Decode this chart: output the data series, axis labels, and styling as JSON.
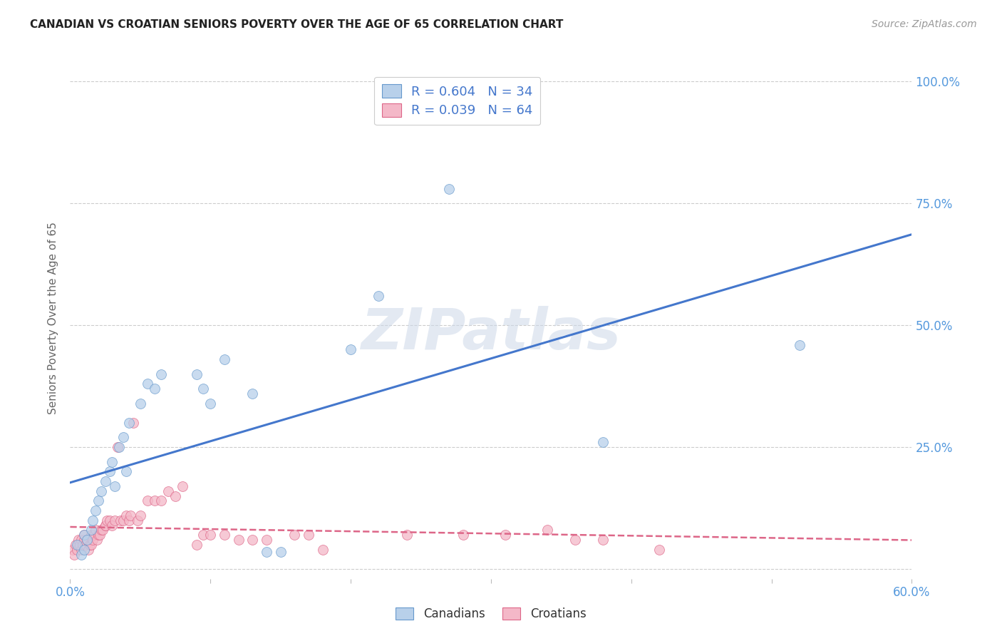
{
  "title": "CANADIAN VS CROATIAN SENIORS POVERTY OVER THE AGE OF 65 CORRELATION CHART",
  "source": "Source: ZipAtlas.com",
  "ylabel": "Seniors Poverty Over the Age of 65",
  "xlim": [
    0.0,
    0.6
  ],
  "ylim": [
    -0.02,
    1.05
  ],
  "yticks": [
    0.0,
    0.25,
    0.5,
    0.75,
    1.0
  ],
  "ytick_labels": [
    "",
    "25.0%",
    "50.0%",
    "75.0%",
    "100.0%"
  ],
  "xtick_vals": [
    0.0,
    0.1,
    0.2,
    0.3,
    0.4,
    0.5,
    0.6
  ],
  "xtick_labels": [
    "0.0%",
    "",
    "",
    "",
    "",
    "",
    "60.0%"
  ],
  "canadian_R": "0.604",
  "canadian_N": "34",
  "croatian_R": "0.039",
  "croatian_N": "64",
  "canadian_color": "#b8d0ea",
  "croatian_color": "#f4b8c8",
  "canadian_edge_color": "#6699cc",
  "croatian_edge_color": "#dd6688",
  "trendline_canadian_color": "#4477cc",
  "trendline_croatian_color": "#dd6688",
  "background_color": "#ffffff",
  "watermark": "ZIPatlas",
  "canadians_x": [
    0.005,
    0.008,
    0.01,
    0.01,
    0.012,
    0.015,
    0.016,
    0.018,
    0.02,
    0.022,
    0.025,
    0.028,
    0.03,
    0.032,
    0.035,
    0.038,
    0.04,
    0.042,
    0.05,
    0.055,
    0.06,
    0.065,
    0.09,
    0.095,
    0.1,
    0.11,
    0.13,
    0.14,
    0.15,
    0.2,
    0.22,
    0.27,
    0.38,
    0.52
  ],
  "canadians_y": [
    0.05,
    0.03,
    0.04,
    0.07,
    0.06,
    0.08,
    0.1,
    0.12,
    0.14,
    0.16,
    0.18,
    0.2,
    0.22,
    0.17,
    0.25,
    0.27,
    0.2,
    0.3,
    0.34,
    0.38,
    0.37,
    0.4,
    0.4,
    0.37,
    0.34,
    0.43,
    0.36,
    0.035,
    0.035,
    0.45,
    0.56,
    0.78,
    0.26,
    0.46
  ],
  "croatians_x": [
    0.002,
    0.003,
    0.004,
    0.005,
    0.006,
    0.006,
    0.007,
    0.008,
    0.008,
    0.009,
    0.01,
    0.01,
    0.011,
    0.012,
    0.013,
    0.014,
    0.015,
    0.015,
    0.016,
    0.017,
    0.018,
    0.019,
    0.02,
    0.021,
    0.022,
    0.023,
    0.025,
    0.025,
    0.026,
    0.028,
    0.03,
    0.032,
    0.034,
    0.036,
    0.038,
    0.04,
    0.042,
    0.043,
    0.045,
    0.048,
    0.05,
    0.055,
    0.06,
    0.065,
    0.07,
    0.075,
    0.08,
    0.09,
    0.095,
    0.1,
    0.11,
    0.12,
    0.13,
    0.14,
    0.16,
    0.17,
    0.18,
    0.24,
    0.28,
    0.31,
    0.34,
    0.36,
    0.38,
    0.42
  ],
  "croatians_y": [
    0.04,
    0.03,
    0.05,
    0.04,
    0.05,
    0.06,
    0.05,
    0.04,
    0.06,
    0.05,
    0.06,
    0.07,
    0.05,
    0.06,
    0.04,
    0.05,
    0.05,
    0.07,
    0.06,
    0.07,
    0.08,
    0.06,
    0.07,
    0.07,
    0.08,
    0.08,
    0.09,
    0.09,
    0.1,
    0.1,
    0.09,
    0.1,
    0.25,
    0.1,
    0.1,
    0.11,
    0.1,
    0.11,
    0.3,
    0.1,
    0.11,
    0.14,
    0.14,
    0.14,
    0.16,
    0.15,
    0.17,
    0.05,
    0.07,
    0.07,
    0.07,
    0.06,
    0.06,
    0.06,
    0.07,
    0.07,
    0.04,
    0.07,
    0.07,
    0.07,
    0.08,
    0.06,
    0.06,
    0.04
  ]
}
